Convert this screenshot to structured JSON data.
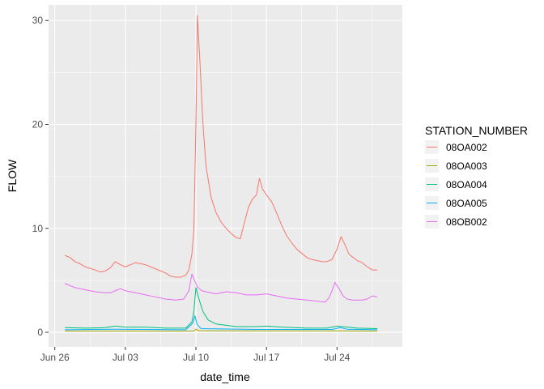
{
  "chart_data": {
    "type": "line",
    "xlabel": "date_time",
    "ylabel": "FLOW",
    "xlim_day": [
      26.5,
      31.6
    ],
    "ylim": [
      -1.4,
      31.5
    ],
    "x_ticks": [
      {
        "label": "Jun 26",
        "day": 0
      },
      {
        "label": "Jul 03",
        "day": 7
      },
      {
        "label": "Jul 10",
        "day": 14
      },
      {
        "label": "Jul 17",
        "day": 21
      },
      {
        "label": "Jul 24",
        "day": 28
      }
    ],
    "y_ticks": [
      0,
      10,
      20,
      30
    ],
    "legend": {
      "title": "STATION_NUMBER",
      "position": "right"
    },
    "colors": {
      "panel": "#ebebeb",
      "grid": "#ffffff",
      "tick": "#333333"
    },
    "series": [
      {
        "name": "08OA002",
        "color": "#F8766D",
        "points": [
          [
            1.0,
            7.4
          ],
          [
            1.5,
            7.2
          ],
          [
            2.0,
            6.8
          ],
          [
            2.5,
            6.6
          ],
          [
            3.0,
            6.3
          ],
          [
            4.0,
            6.0
          ],
          [
            4.5,
            5.8
          ],
          [
            5.0,
            5.9
          ],
          [
            5.5,
            6.2
          ],
          [
            6.0,
            6.8
          ],
          [
            6.5,
            6.5
          ],
          [
            7.0,
            6.3
          ],
          [
            7.5,
            6.5
          ],
          [
            8.0,
            6.7
          ],
          [
            8.5,
            6.6
          ],
          [
            9.0,
            6.5
          ],
          [
            9.5,
            6.3
          ],
          [
            10.0,
            6.1
          ],
          [
            10.5,
            5.9
          ],
          [
            11.0,
            5.7
          ],
          [
            11.5,
            5.4
          ],
          [
            12.0,
            5.3
          ],
          [
            12.5,
            5.3
          ],
          [
            13.0,
            5.5
          ],
          [
            13.3,
            6.0
          ],
          [
            13.6,
            7.5
          ],
          [
            13.8,
            10.0
          ],
          [
            14.0,
            20.0
          ],
          [
            14.15,
            30.5
          ],
          [
            14.4,
            26.0
          ],
          [
            14.7,
            20.0
          ],
          [
            15.0,
            16.0
          ],
          [
            15.5,
            13.0
          ],
          [
            16.0,
            11.5
          ],
          [
            16.5,
            10.6
          ],
          [
            17.0,
            10.0
          ],
          [
            17.5,
            9.5
          ],
          [
            18.0,
            9.1
          ],
          [
            18.4,
            9.0
          ],
          [
            18.8,
            10.5
          ],
          [
            19.2,
            12.0
          ],
          [
            19.6,
            12.8
          ],
          [
            20.0,
            13.2
          ],
          [
            20.3,
            14.8
          ],
          [
            20.6,
            13.8
          ],
          [
            21.0,
            13.2
          ],
          [
            21.5,
            12.6
          ],
          [
            22.0,
            11.5
          ],
          [
            22.5,
            10.3
          ],
          [
            23.0,
            9.3
          ],
          [
            23.5,
            8.6
          ],
          [
            24.0,
            8.0
          ],
          [
            24.5,
            7.6
          ],
          [
            25.0,
            7.2
          ],
          [
            25.5,
            7.0
          ],
          [
            26.0,
            6.9
          ],
          [
            26.5,
            6.8
          ],
          [
            27.0,
            6.8
          ],
          [
            27.5,
            7.0
          ],
          [
            28.0,
            8.0
          ],
          [
            28.4,
            9.2
          ],
          [
            28.8,
            8.4
          ],
          [
            29.2,
            7.5
          ],
          [
            29.6,
            7.2
          ],
          [
            30.0,
            6.9
          ],
          [
            30.5,
            6.7
          ],
          [
            31.0,
            6.3
          ],
          [
            31.5,
            6.0
          ],
          [
            32.0,
            6.0
          ]
        ]
      },
      {
        "name": "08OA003",
        "color": "#A3A500",
        "points": [
          [
            1.0,
            0.12
          ],
          [
            13.8,
            0.12
          ],
          [
            14.0,
            0.3
          ],
          [
            14.3,
            0.15
          ],
          [
            20.0,
            0.14
          ],
          [
            28.0,
            0.14
          ],
          [
            32.0,
            0.12
          ]
        ]
      },
      {
        "name": "08OA004",
        "color": "#00BF7D",
        "points": [
          [
            1.0,
            0.45
          ],
          [
            3.0,
            0.4
          ],
          [
            5.0,
            0.45
          ],
          [
            6.0,
            0.6
          ],
          [
            7.0,
            0.5
          ],
          [
            9.0,
            0.5
          ],
          [
            11.0,
            0.4
          ],
          [
            13.0,
            0.4
          ],
          [
            13.6,
            1.0
          ],
          [
            13.8,
            2.0
          ],
          [
            14.0,
            4.3
          ],
          [
            14.3,
            3.2
          ],
          [
            14.7,
            2.0
          ],
          [
            15.2,
            1.2
          ],
          [
            16.0,
            0.8
          ],
          [
            18.0,
            0.55
          ],
          [
            20.0,
            0.55
          ],
          [
            21.0,
            0.6
          ],
          [
            22.5,
            0.5
          ],
          [
            25.0,
            0.4
          ],
          [
            27.0,
            0.4
          ],
          [
            28.0,
            0.6
          ],
          [
            29.0,
            0.5
          ],
          [
            30.0,
            0.4
          ],
          [
            32.0,
            0.35
          ]
        ]
      },
      {
        "name": "08OA005",
        "color": "#00B0F6",
        "points": [
          [
            1.0,
            0.25
          ],
          [
            6.0,
            0.3
          ],
          [
            13.0,
            0.25
          ],
          [
            13.7,
            0.9
          ],
          [
            13.9,
            1.6
          ],
          [
            14.1,
            0.8
          ],
          [
            14.5,
            0.35
          ],
          [
            20.0,
            0.28
          ],
          [
            27.5,
            0.28
          ],
          [
            28.3,
            0.45
          ],
          [
            29.0,
            0.3
          ],
          [
            32.0,
            0.25
          ]
        ]
      },
      {
        "name": "08OB002",
        "color": "#E76BF3",
        "points": [
          [
            1.0,
            4.7
          ],
          [
            1.5,
            4.5
          ],
          [
            2.0,
            4.3
          ],
          [
            3.0,
            4.1
          ],
          [
            4.0,
            3.9
          ],
          [
            5.0,
            3.8
          ],
          [
            5.5,
            3.8
          ],
          [
            6.0,
            4.0
          ],
          [
            6.5,
            4.2
          ],
          [
            7.0,
            4.0
          ],
          [
            8.0,
            3.8
          ],
          [
            9.0,
            3.6
          ],
          [
            10.0,
            3.4
          ],
          [
            11.0,
            3.2
          ],
          [
            12.0,
            3.1
          ],
          [
            12.8,
            3.2
          ],
          [
            13.3,
            4.0
          ],
          [
            13.6,
            5.6
          ],
          [
            13.9,
            4.9
          ],
          [
            14.2,
            4.3
          ],
          [
            14.6,
            4.0
          ],
          [
            15.0,
            3.9
          ],
          [
            16.0,
            3.7
          ],
          [
            17.0,
            3.9
          ],
          [
            18.0,
            3.8
          ],
          [
            19.0,
            3.6
          ],
          [
            20.0,
            3.6
          ],
          [
            21.0,
            3.7
          ],
          [
            22.0,
            3.5
          ],
          [
            23.0,
            3.3
          ],
          [
            24.0,
            3.2
          ],
          [
            25.0,
            3.1
          ],
          [
            26.0,
            3.0
          ],
          [
            26.8,
            2.9
          ],
          [
            27.2,
            3.3
          ],
          [
            27.5,
            4.0
          ],
          [
            27.8,
            4.8
          ],
          [
            28.2,
            4.2
          ],
          [
            28.6,
            3.5
          ],
          [
            29.0,
            3.2
          ],
          [
            29.5,
            3.1
          ],
          [
            30.0,
            3.1
          ],
          [
            30.5,
            3.1
          ],
          [
            31.0,
            3.2
          ],
          [
            31.5,
            3.5
          ],
          [
            32.0,
            3.4
          ]
        ]
      }
    ]
  }
}
